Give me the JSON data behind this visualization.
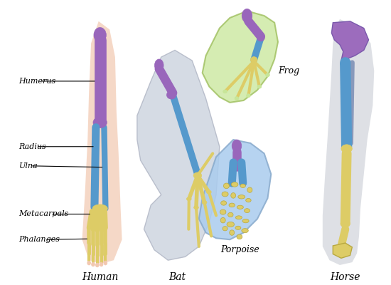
{
  "background_color": "#ffffff",
  "labels": {
    "human": "Human",
    "bat": "Bat",
    "porpoise": "Porpoise",
    "horse": "Horse",
    "frog": "Frog"
  },
  "bone_labels": [
    "Humerus",
    "Radius",
    "Ulna",
    "Metacarpals",
    "Phalanges"
  ],
  "colors": {
    "humerus": "#9966bb",
    "radius_ulna": "#5599cc",
    "metacarpals": "#ddcc66",
    "phalanges_yellow": "#ddcc66",
    "skin_human": "#f2c8b0",
    "skin_bat": "#c8d0dc",
    "skin_porpoise": "#aaccee",
    "skin_frog": "#c8e699",
    "skin_horse": "#c8ccd4",
    "frog_outline": "#99bb55",
    "bat_outline": "#aab0c0",
    "porpoise_outline": "#88aacc",
    "horse_shadow": "#b0b8c8",
    "bone_outline": "#888888"
  },
  "figsize": [
    5.5,
    4.0
  ],
  "dpi": 100
}
